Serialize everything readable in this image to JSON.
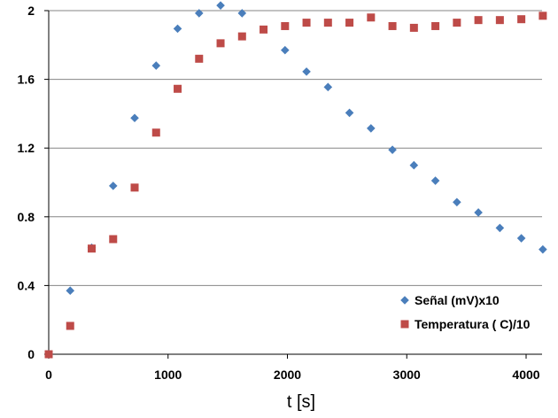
{
  "chart_data": {
    "type": "scatter",
    "title": "",
    "xlabel": "t [s]",
    "ylabel": "",
    "xlim": [
      0,
      4200
    ],
    "ylim": [
      0,
      2
    ],
    "x_ticks": [
      "0",
      "1000",
      "2000",
      "3000",
      "4000"
    ],
    "y_ticks": [
      "0",
      "0.4",
      "0.8",
      "1.2",
      "1.6",
      "2"
    ],
    "grid": "horizontal",
    "legend_position": "bottom-right",
    "series": [
      {
        "name": "Señal (mV)x10",
        "marker": "diamond",
        "color": "#4a7ebb",
        "points": [
          [
            0,
            0
          ],
          [
            180,
            0.37
          ],
          [
            360,
            0.62
          ],
          [
            540,
            0.98
          ],
          [
            720,
            1.375
          ],
          [
            900,
            1.68
          ],
          [
            1080,
            1.895
          ],
          [
            1260,
            1.985
          ],
          [
            1440,
            2.03
          ],
          [
            1620,
            1.985
          ],
          [
            1980,
            1.77
          ],
          [
            2160,
            1.645
          ],
          [
            2340,
            1.555
          ],
          [
            2520,
            1.405
          ],
          [
            2700,
            1.315
          ],
          [
            2880,
            1.19
          ],
          [
            3060,
            1.1
          ],
          [
            3240,
            1.01
          ],
          [
            3420,
            0.885
          ],
          [
            3600,
            0.825
          ],
          [
            3780,
            0.735
          ],
          [
            3960,
            0.675
          ],
          [
            4140,
            0.61
          ]
        ]
      },
      {
        "name": "Temperatura ( C)/10",
        "marker": "square",
        "color": "#be4b48",
        "points": [
          [
            0,
            0
          ],
          [
            180,
            0.165
          ],
          [
            360,
            0.615
          ],
          [
            540,
            0.67
          ],
          [
            720,
            0.97
          ],
          [
            900,
            1.29
          ],
          [
            1080,
            1.545
          ],
          [
            1260,
            1.72
          ],
          [
            1440,
            1.81
          ],
          [
            1620,
            1.85
          ],
          [
            1800,
            1.89
          ],
          [
            1980,
            1.91
          ],
          [
            2160,
            1.93
          ],
          [
            2340,
            1.93
          ],
          [
            2520,
            1.93
          ],
          [
            2700,
            1.96
          ],
          [
            2880,
            1.91
          ],
          [
            3060,
            1.9
          ],
          [
            3240,
            1.91
          ],
          [
            3420,
            1.93
          ],
          [
            3600,
            1.945
          ],
          [
            3780,
            1.945
          ],
          [
            3960,
            1.95
          ],
          [
            4140,
            1.97
          ]
        ]
      }
    ]
  }
}
